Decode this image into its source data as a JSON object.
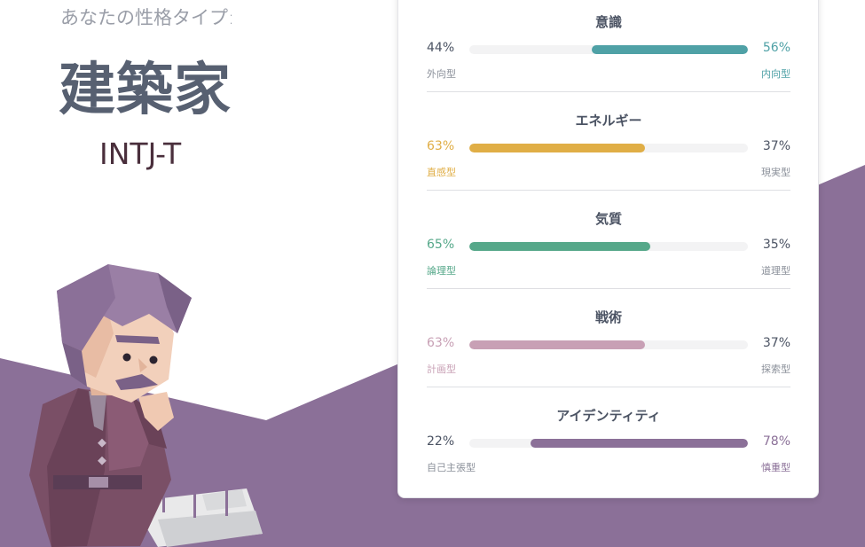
{
  "header": {
    "subtitle": "あなたの性格タイプ:",
    "type_name": "建築家",
    "type_code": "INTJ-T"
  },
  "colors": {
    "purple_band": "#8b7098",
    "mind": "#4fa1a6",
    "energy": "#e0ae46",
    "nature": "#56a88a",
    "tactics": "#c8a0b5",
    "identity": "#8b7098"
  },
  "traits": [
    {
      "title": "意識",
      "left_pct": "44%",
      "right_pct": "56%",
      "left_label": "外向型",
      "right_label": "内向型",
      "dominant": "right",
      "fill_fraction": 0.56,
      "color": "#4fa1a6"
    },
    {
      "title": "エネルギー",
      "left_pct": "63%",
      "right_pct": "37%",
      "left_label": "直感型",
      "right_label": "現実型",
      "dominant": "left",
      "fill_fraction": 0.63,
      "color": "#e0ae46"
    },
    {
      "title": "気質",
      "left_pct": "65%",
      "right_pct": "35%",
      "left_label": "論理型",
      "right_label": "道理型",
      "dominant": "left",
      "fill_fraction": 0.65,
      "color": "#56a88a"
    },
    {
      "title": "戦術",
      "left_pct": "63%",
      "right_pct": "37%",
      "left_label": "計画型",
      "right_label": "探索型",
      "dominant": "left",
      "fill_fraction": 0.63,
      "color": "#c8a0b5"
    },
    {
      "title": "アイデンティティ",
      "left_pct": "22%",
      "right_pct": "78%",
      "left_label": "自己主張型",
      "right_label": "慎重型",
      "dominant": "right",
      "fill_fraction": 0.78,
      "color": "#8b7098"
    }
  ]
}
